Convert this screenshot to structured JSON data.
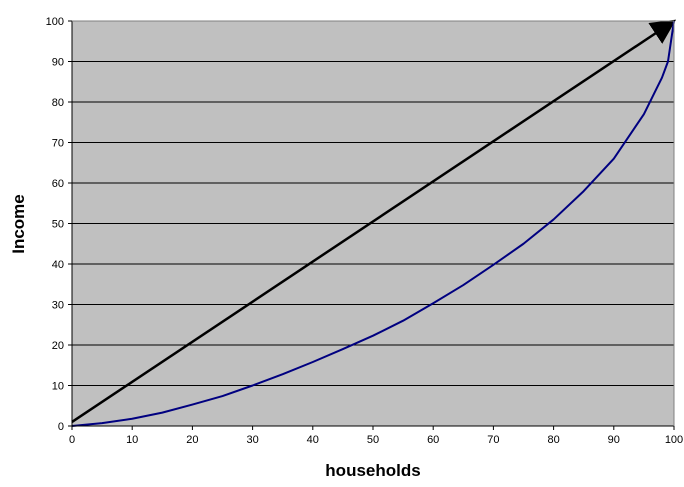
{
  "chart_data": {
    "type": "line",
    "title": "",
    "xlabel": "households",
    "ylabel": "Income",
    "xlim": [
      0,
      100
    ],
    "ylim": [
      0,
      100
    ],
    "x_ticks": [
      "0",
      "10",
      "20",
      "30",
      "40",
      "50",
      "60",
      "70",
      "80",
      "90",
      "100"
    ],
    "y_ticks": [
      "0",
      "10",
      "20",
      "30",
      "40",
      "50",
      "60",
      "70",
      "80",
      "90",
      "100"
    ],
    "grid": "horizontal",
    "legend": "none",
    "series": [
      {
        "style": "arrow",
        "color": "#000000",
        "points": [
          [
            0,
            1
          ],
          [
            100,
            100
          ]
        ]
      },
      {
        "style": "curve",
        "color": "#000080",
        "points": [
          [
            0,
            0
          ],
          [
            5,
            0.7
          ],
          [
            10,
            1.8
          ],
          [
            15,
            3.3
          ],
          [
            20,
            5.3
          ],
          [
            25,
            7.4
          ],
          [
            30,
            10
          ],
          [
            35,
            12.8
          ],
          [
            40,
            15.8
          ],
          [
            45,
            19
          ],
          [
            50,
            22.3
          ],
          [
            55,
            26
          ],
          [
            60,
            30.3
          ],
          [
            65,
            34.8
          ],
          [
            70,
            39.8
          ],
          [
            75,
            45
          ],
          [
            80,
            51
          ],
          [
            85,
            58
          ],
          [
            90,
            66
          ],
          [
            95,
            77
          ],
          [
            97,
            83
          ],
          [
            98,
            86
          ],
          [
            99,
            90
          ],
          [
            100,
            100
          ]
        ]
      }
    ]
  },
  "colors": {
    "plot_background": "#C0C0C0",
    "gridline": "#000000",
    "curve": "#000080",
    "arrow": "#000000"
  }
}
